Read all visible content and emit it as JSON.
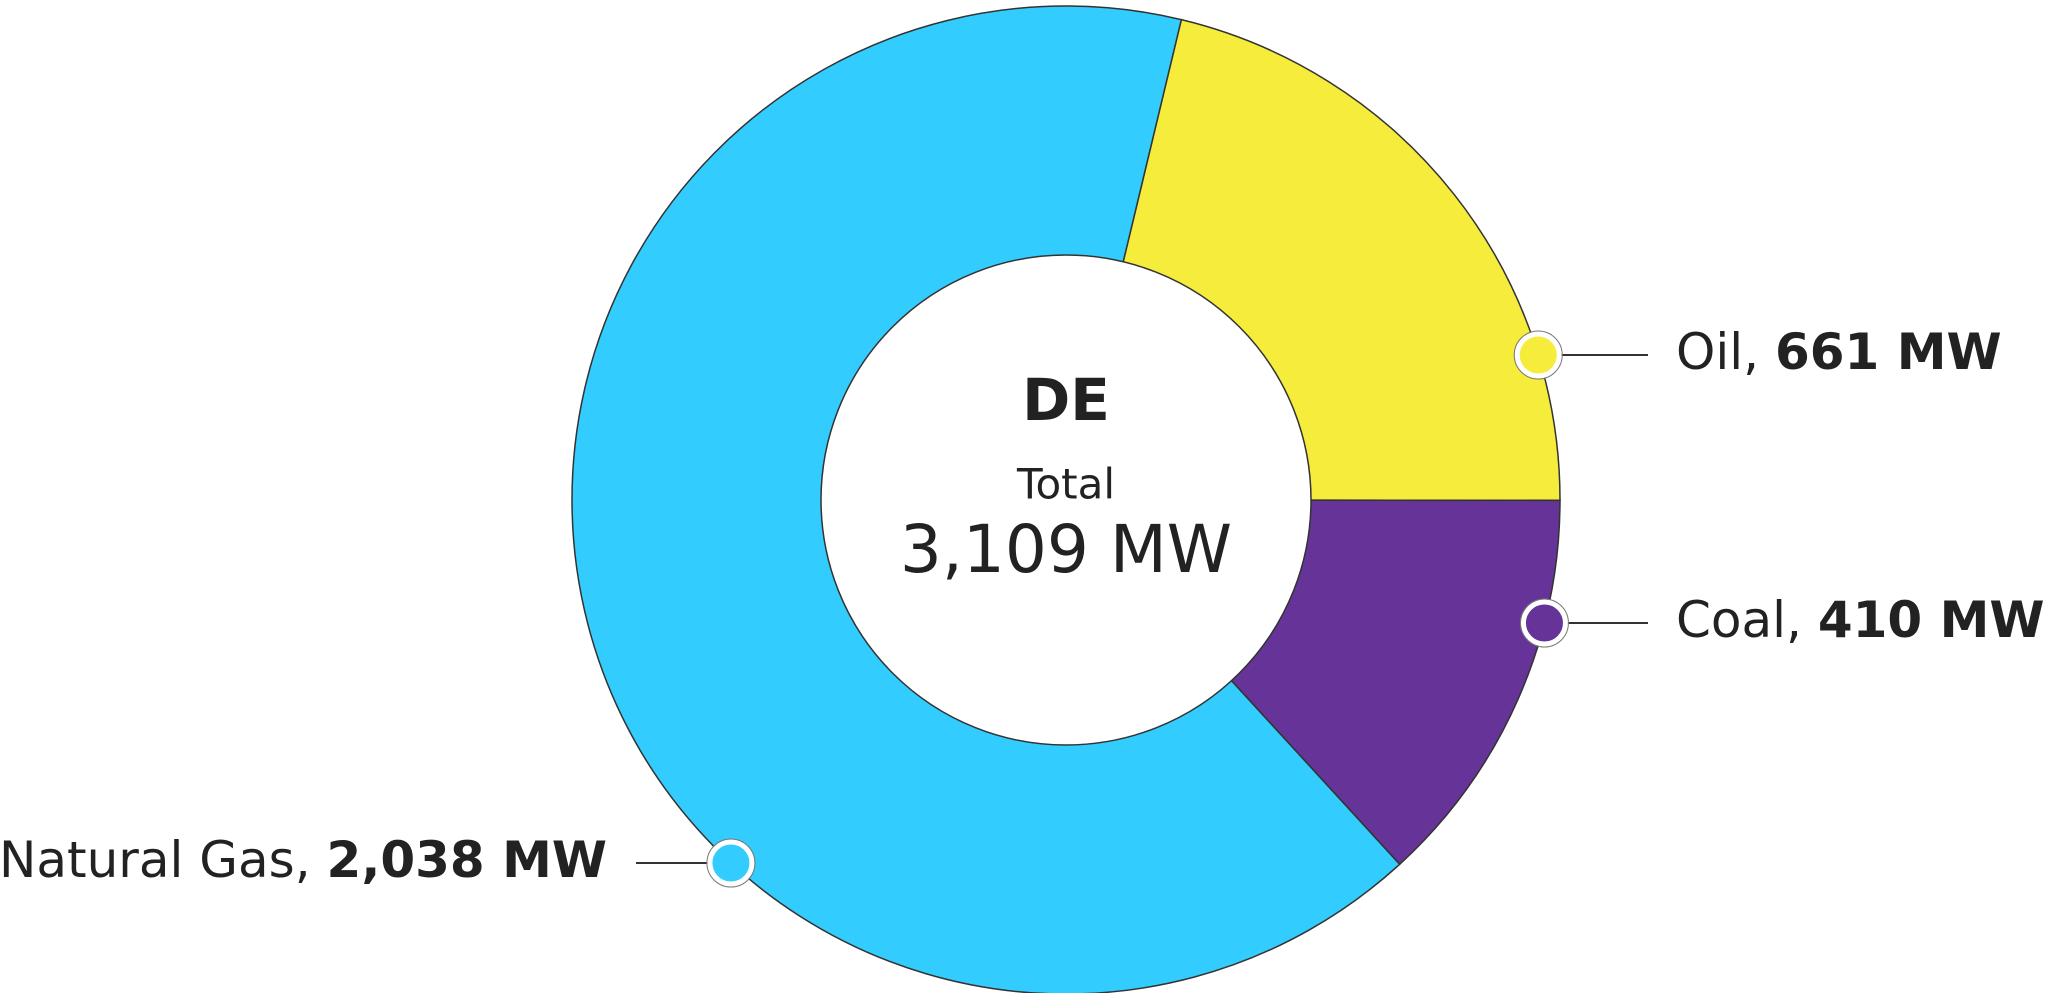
{
  "chart_data": {
    "type": "pie",
    "categories": [
      "Oil",
      "Coal",
      "Natural Gas"
    ],
    "values": [
      661,
      410,
      2038
    ],
    "value_labels": [
      "661 MW",
      "410 MW",
      "2,038 MW"
    ],
    "colors": [
      "#f5ec3b",
      "#663399",
      "#33ccff"
    ],
    "label_separator": ", ",
    "center": {
      "title": "DE",
      "label": "Total",
      "value": "3,109 MW"
    }
  }
}
